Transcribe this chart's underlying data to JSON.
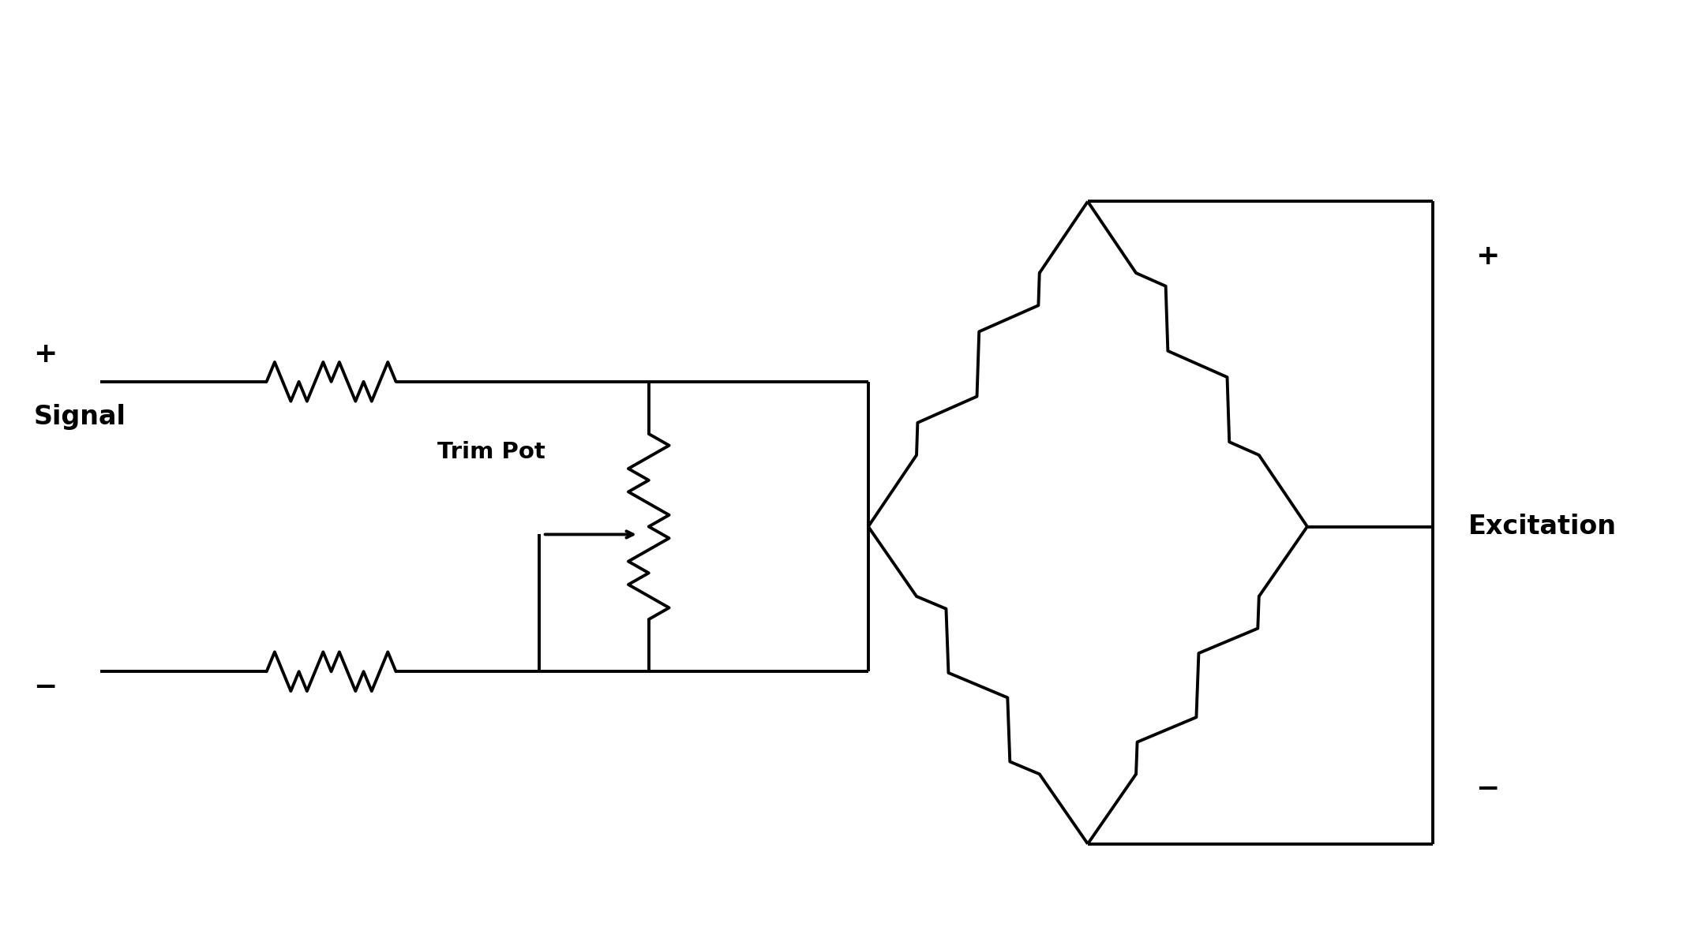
{
  "background_color": "#ffffff",
  "line_color": "#000000",
  "linewidth": 2.8,
  "figsize": [
    21.56,
    12.03
  ],
  "dpi": 100,
  "labels": {
    "plus_signal": "+",
    "signal": "Signal",
    "minus_signal": "−",
    "trim_pot": "Trim Pot",
    "plus_excitation": "+",
    "minus_excitation": "−",
    "excitation": "Excitation"
  }
}
